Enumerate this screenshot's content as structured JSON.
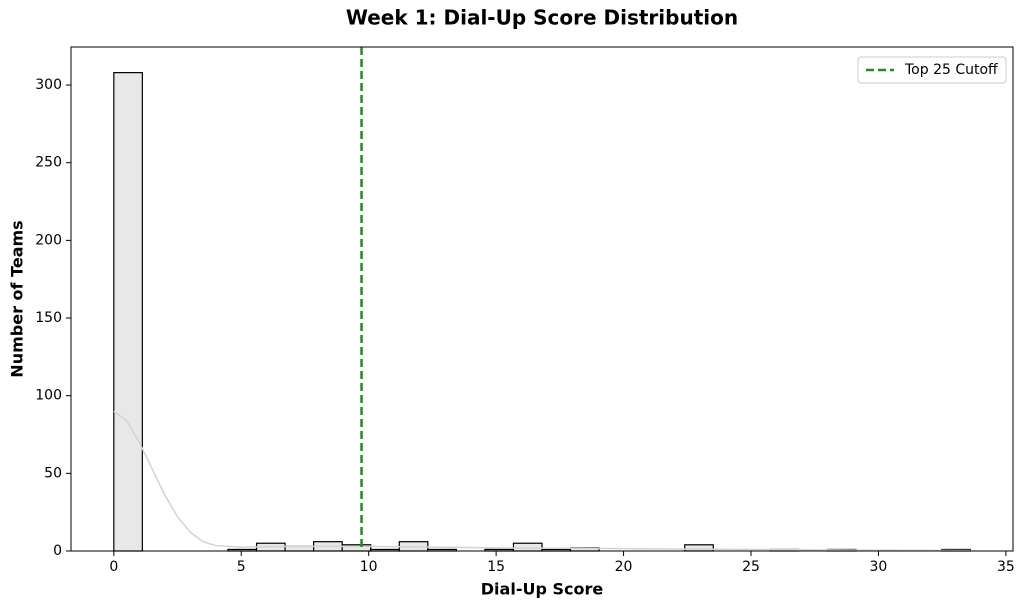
{
  "chart_data": {
    "type": "histogram",
    "title": "Week 1: Dial-Up Score Distribution",
    "x_label": "Dial-Up Score",
    "y_label": "Number of Teams",
    "bins": [
      0,
      1.12,
      2.24,
      3.36,
      4.48,
      5.6,
      6.72,
      7.84,
      8.96,
      10.08,
      11.2,
      12.32,
      13.44,
      14.56,
      15.68,
      16.8,
      17.92,
      19.04,
      20.16,
      21.28,
      22.4,
      23.52,
      24.64,
      25.76,
      26.88,
      28,
      29.12,
      30.24,
      31.36,
      32.48,
      33.6
    ],
    "values": [
      308,
      0,
      0,
      0,
      1,
      5,
      3,
      6,
      4,
      1,
      6,
      1,
      0,
      1,
      5,
      1,
      2,
      0,
      0,
      0,
      4,
      0,
      0,
      1,
      0,
      1,
      0,
      0,
      0,
      1
    ],
    "color": "#e8e8e8",
    "edge_color": "#000000",
    "kde": {
      "x": [
        0,
        0.5,
        1,
        1.5,
        2,
        2.5,
        3,
        3.5,
        4,
        5,
        7,
        10,
        15,
        20,
        25,
        30,
        33.6
      ],
      "values": [
        90,
        84,
        70,
        53,
        36,
        22,
        12,
        6,
        3.5,
        2.5,
        3,
        3,
        2,
        1.5,
        1,
        0.5,
        0.3
      ],
      "color": "#d3d3d3"
    },
    "cutoff": {
      "name": "Top 25 Cutoff",
      "value": 9.72,
      "color": "#228b22"
    },
    "legend_loc": "upper right",
    "xlim": [
      -1.68,
      35.28
    ],
    "ylim": [
      0,
      324.5
    ],
    "xticks": [
      0,
      5,
      10,
      15,
      20,
      25,
      30,
      35
    ],
    "yticks": [
      0,
      50,
      100,
      150,
      200,
      250,
      300
    ]
  }
}
